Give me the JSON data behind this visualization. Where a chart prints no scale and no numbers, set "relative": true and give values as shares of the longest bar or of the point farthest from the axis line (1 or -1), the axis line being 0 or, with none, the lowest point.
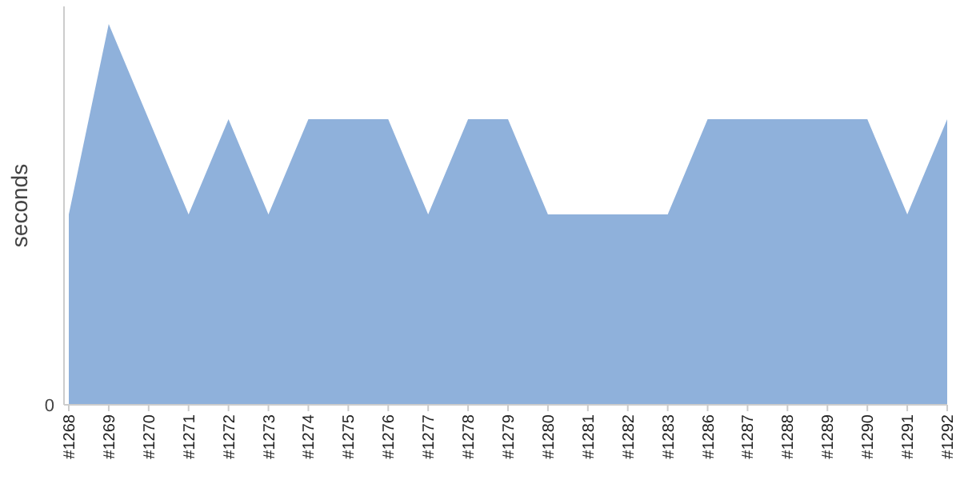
{
  "chart_data": {
    "type": "area",
    "ylabel": "seconds",
    "relative": true,
    "annotations": [
      "0"
    ],
    "categories": [
      "#1268",
      "#1269",
      "#1270",
      "#1271",
      "#1272",
      "#1273",
      "#1274",
      "#1275",
      "#1276",
      "#1277",
      "#1278",
      "#1279",
      "#1280",
      "#1281",
      "#1282",
      "#1283",
      "#1286",
      "#1287",
      "#1288",
      "#1289",
      "#1290",
      "#1291",
      "#1292"
    ],
    "series": [
      {
        "color": "#8fb1db",
        "values": [
          0.5,
          1,
          0.75,
          0.5,
          0.75,
          0.5,
          0.75,
          0.75,
          0.75,
          0.5,
          0.75,
          0.75,
          0.5,
          0.5,
          0.5,
          0.5,
          0.75,
          0.75,
          0.75,
          0.75,
          0.75,
          0.5,
          0.75
        ]
      }
    ]
  }
}
